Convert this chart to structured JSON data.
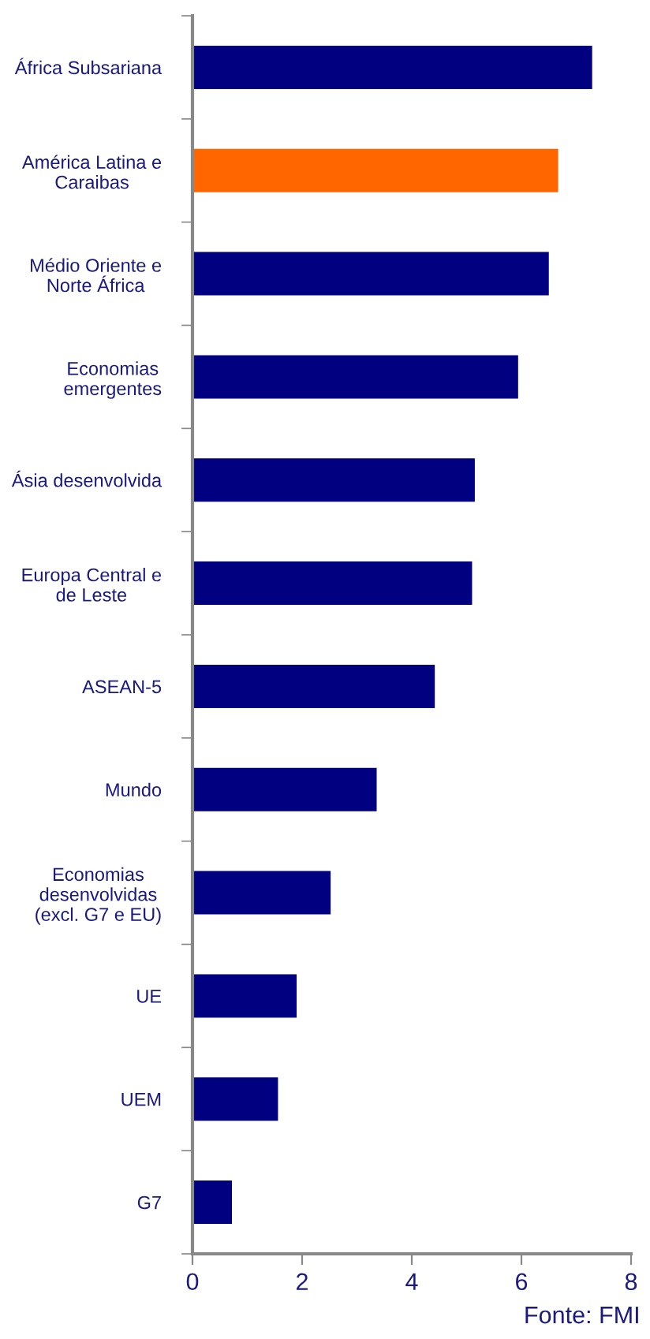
{
  "chart_data": {
    "type": "bar",
    "orientation": "horizontal",
    "categories": [
      "África Subsariana",
      "América Latina e\nCaraibas",
      "Médio Oriente e\nNorte África",
      "Economias\nemergentes",
      "Ásia desenvolvida",
      "Europa Central e\nde Leste",
      "ASEAN-5",
      "Mundo",
      "Economias\ndesenvolvidas\n(excl. G7 e EU)",
      "UE",
      "UEM",
      "G7"
    ],
    "values": [
      7.29,
      6.67,
      6.5,
      5.94,
      5.15,
      5.1,
      4.42,
      3.36,
      2.52,
      1.9,
      1.56,
      0.72
    ],
    "colors": [
      "#000080",
      "#ff6600",
      "#000080",
      "#000080",
      "#000080",
      "#000080",
      "#000080",
      "#000080",
      "#000080",
      "#000080",
      "#000080",
      "#000080"
    ],
    "xlim": [
      0,
      8
    ],
    "xticks": [
      0,
      2,
      4,
      6,
      8
    ],
    "grid": false,
    "annotations": [
      "Fonte: FMI"
    ]
  }
}
